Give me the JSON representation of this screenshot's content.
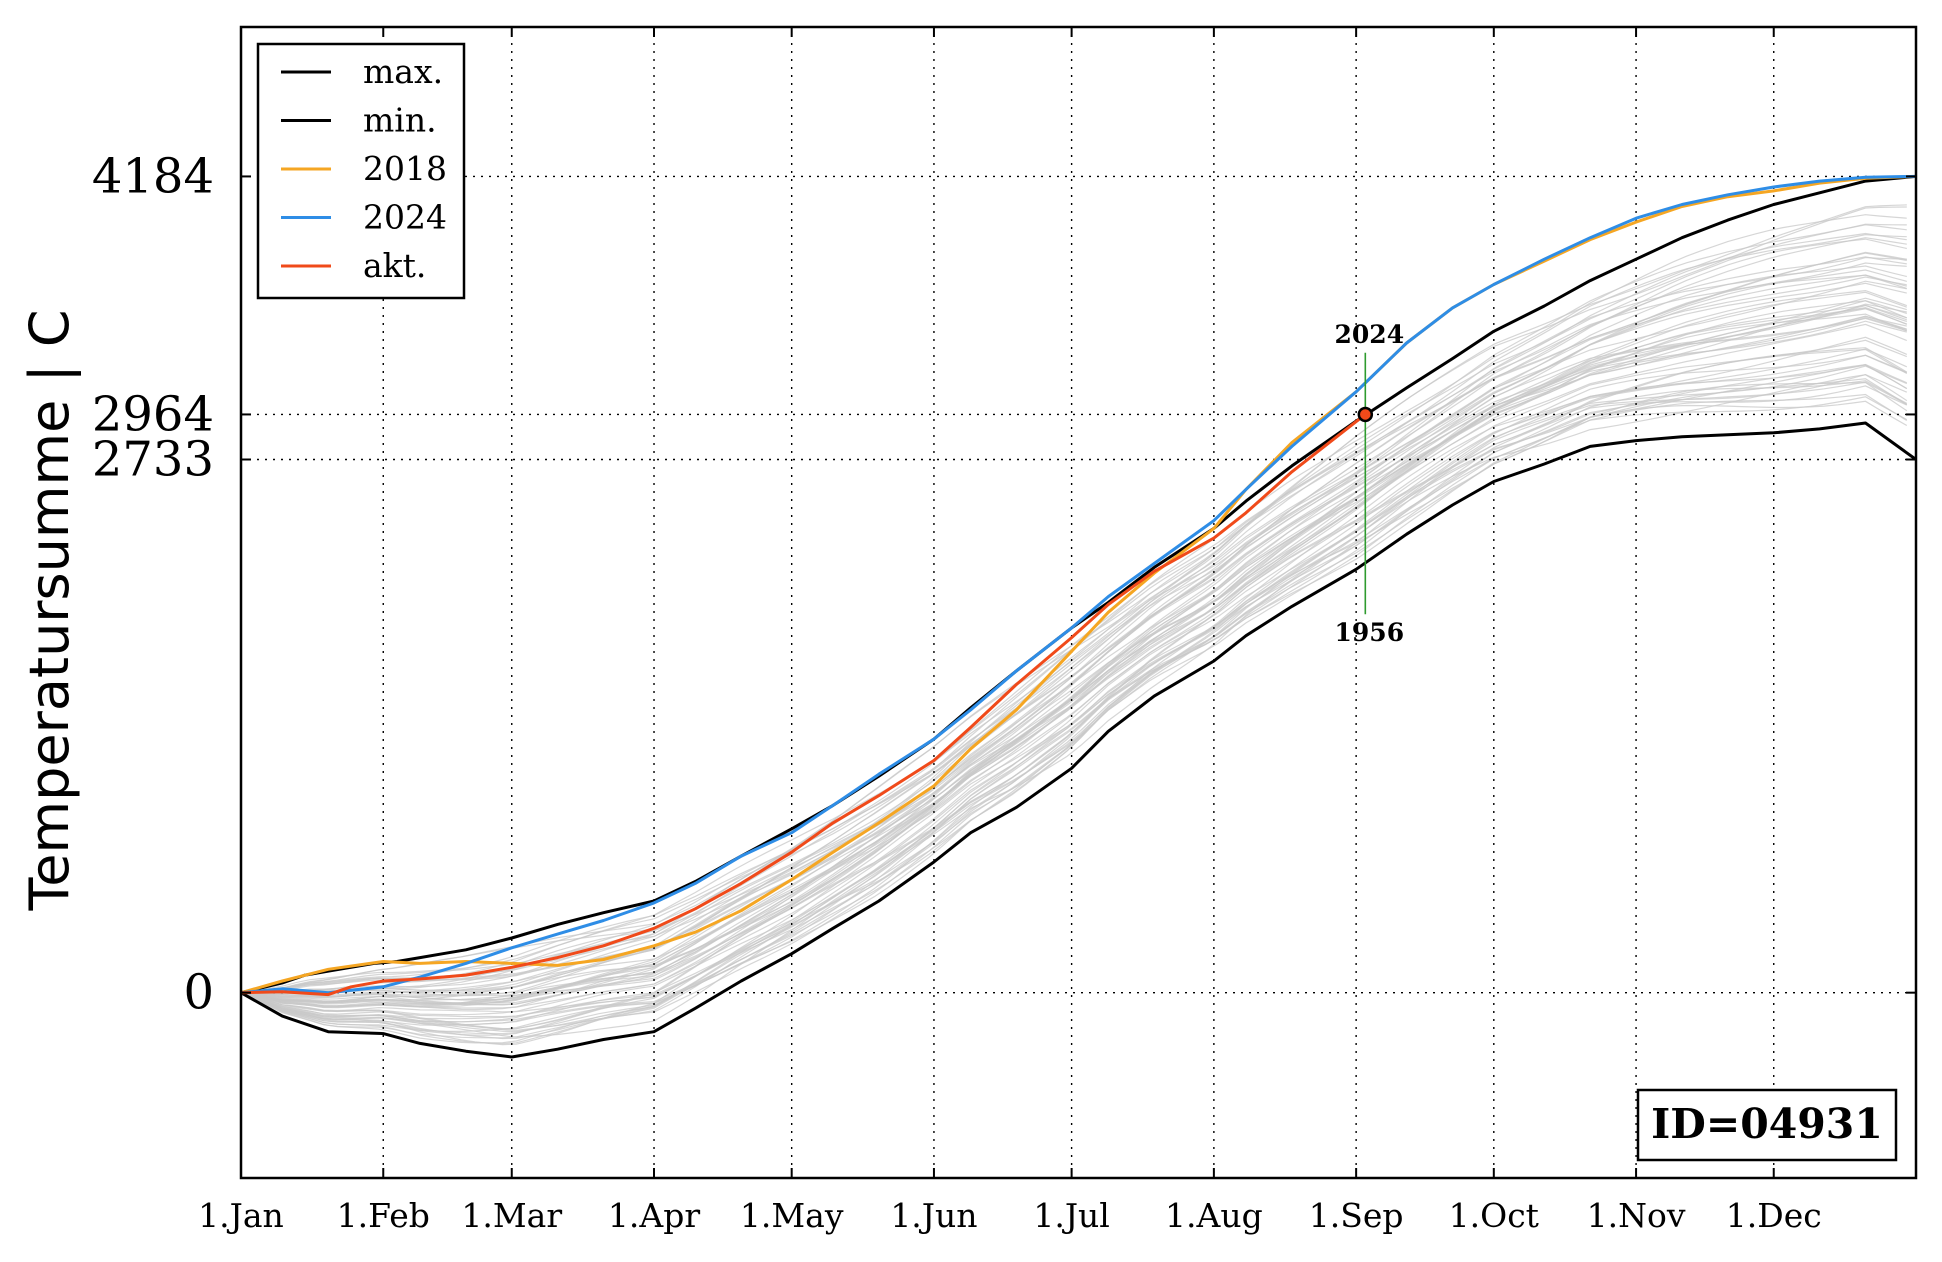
{
  "chart_data": {
    "type": "line",
    "ylabel": "Temperatursumme | C",
    "xlabel": "",
    "x_ticks": [
      "1.Jan",
      "1.Feb",
      "1.Mar",
      "1.Apr",
      "1.May",
      "1.Jun",
      "1.Jul",
      "1.Aug",
      "1.Sep",
      "1.Oct",
      "1.Nov",
      "1.Dec"
    ],
    "x_tick_days": [
      1,
      32,
      60,
      91,
      121,
      152,
      182,
      213,
      244,
      274,
      305,
      335
    ],
    "xlim": [
      1,
      366
    ],
    "y_ticks": [
      0,
      2733,
      2964,
      4184
    ],
    "ylim": [
      -950,
      4950
    ],
    "grid": true,
    "legend_position": "top-left",
    "id_label": "ID=04931",
    "annotation": {
      "day": 246,
      "value": 2964,
      "top_label": "2024",
      "bottom_label": "1956",
      "top_value": 3280,
      "bottom_value": 1940
    },
    "colors": {
      "max": "#000000",
      "min": "#000000",
      "2018": "#f5a623",
      "2024": "#2e8de6",
      "akt": "#f04a1a",
      "history": "#c8c8c8",
      "marker_line": "#2e9b2e"
    },
    "series": [
      {
        "name": "max.",
        "color": "#000000",
        "x": [
          1,
          10,
          15,
          20,
          25,
          30,
          35,
          40,
          45,
          50,
          55,
          60,
          70,
          80,
          91,
          100,
          110,
          121,
          130,
          140,
          152,
          160,
          170,
          182,
          190,
          200,
          213,
          220,
          230,
          244,
          255,
          265,
          274,
          285,
          295,
          305,
          315,
          325,
          335,
          345,
          355,
          366
        ],
        "y": [
          0,
          50,
          90,
          110,
          130,
          150,
          160,
          180,
          200,
          220,
          250,
          280,
          350,
          410,
          470,
          570,
          700,
          840,
          960,
          1110,
          1300,
          1460,
          1650,
          1870,
          2000,
          2180,
          2380,
          2520,
          2700,
          2930,
          3100,
          3250,
          3390,
          3520,
          3650,
          3760,
          3870,
          3960,
          4040,
          4100,
          4160,
          4184
        ]
      },
      {
        "name": "min.",
        "color": "#000000",
        "x": [
          1,
          10,
          20,
          32,
          40,
          50,
          60,
          70,
          80,
          91,
          100,
          110,
          121,
          130,
          140,
          152,
          160,
          170,
          182,
          190,
          200,
          213,
          220,
          230,
          244,
          255,
          265,
          274,
          285,
          295,
          305,
          315,
          325,
          335,
          345,
          355,
          366
        ],
        "y": [
          0,
          -120,
          -200,
          -210,
          -260,
          -300,
          -330,
          -290,
          -240,
          -200,
          -80,
          60,
          200,
          330,
          470,
          670,
          820,
          950,
          1150,
          1340,
          1520,
          1700,
          1830,
          1980,
          2170,
          2350,
          2500,
          2620,
          2710,
          2800,
          2830,
          2850,
          2860,
          2870,
          2890,
          2920,
          2733
        ]
      },
      {
        "name": "2018",
        "color": "#f5a623",
        "x": [
          1,
          10,
          20,
          32,
          40,
          50,
          60,
          70,
          80,
          91,
          100,
          110,
          121,
          130,
          140,
          152,
          160,
          170,
          182,
          190,
          200,
          213,
          220,
          230,
          244,
          255,
          265,
          274,
          285,
          295,
          305,
          315,
          325,
          335,
          345,
          355,
          366
        ],
        "y": [
          0,
          60,
          120,
          160,
          150,
          160,
          150,
          140,
          170,
          240,
          310,
          420,
          580,
          720,
          870,
          1060,
          1250,
          1450,
          1750,
          1950,
          2150,
          2380,
          2580,
          2820,
          3080,
          3330,
          3510,
          3630,
          3750,
          3860,
          3950,
          4030,
          4080,
          4110,
          4150,
          4175,
          4184
        ]
      },
      {
        "name": "2024",
        "color": "#2e8de6",
        "x": [
          1,
          10,
          20,
          32,
          40,
          50,
          60,
          70,
          80,
          91,
          100,
          110,
          121,
          130,
          140,
          152,
          160,
          170,
          182,
          190,
          200,
          213,
          220,
          230,
          244,
          255,
          265,
          274,
          285,
          295,
          305,
          315,
          325,
          335,
          345,
          355,
          366
        ],
        "y": [
          0,
          20,
          0,
          30,
          80,
          150,
          230,
          300,
          370,
          460,
          560,
          700,
          820,
          960,
          1120,
          1300,
          1450,
          1650,
          1870,
          2030,
          2200,
          2420,
          2580,
          2800,
          3080,
          3330,
          3510,
          3630,
          3760,
          3870,
          3970,
          4040,
          4090,
          4130,
          4160,
          4180,
          4184
        ]
      },
      {
        "name": "akt.",
        "color": "#f04a1a",
        "x": [
          1,
          10,
          20,
          25,
          32,
          40,
          50,
          60,
          70,
          80,
          91,
          100,
          110,
          121,
          130,
          140,
          152,
          160,
          170,
          182,
          190,
          200,
          213,
          220,
          230,
          246
        ],
        "y": [
          0,
          5,
          -10,
          30,
          60,
          70,
          90,
          130,
          180,
          240,
          330,
          430,
          560,
          720,
          870,
          1010,
          1190,
          1360,
          1580,
          1820,
          1990,
          2160,
          2330,
          2460,
          2670,
          2964
        ]
      }
    ]
  },
  "legend": {
    "items": [
      {
        "label": "max.",
        "color": "#000000"
      },
      {
        "label": "min.",
        "color": "#000000"
      },
      {
        "label": "2018",
        "color": "#f5a623"
      },
      {
        "label": "2024",
        "color": "#2e8de6"
      },
      {
        "label": "akt.",
        "color": "#f04a1a"
      }
    ]
  }
}
